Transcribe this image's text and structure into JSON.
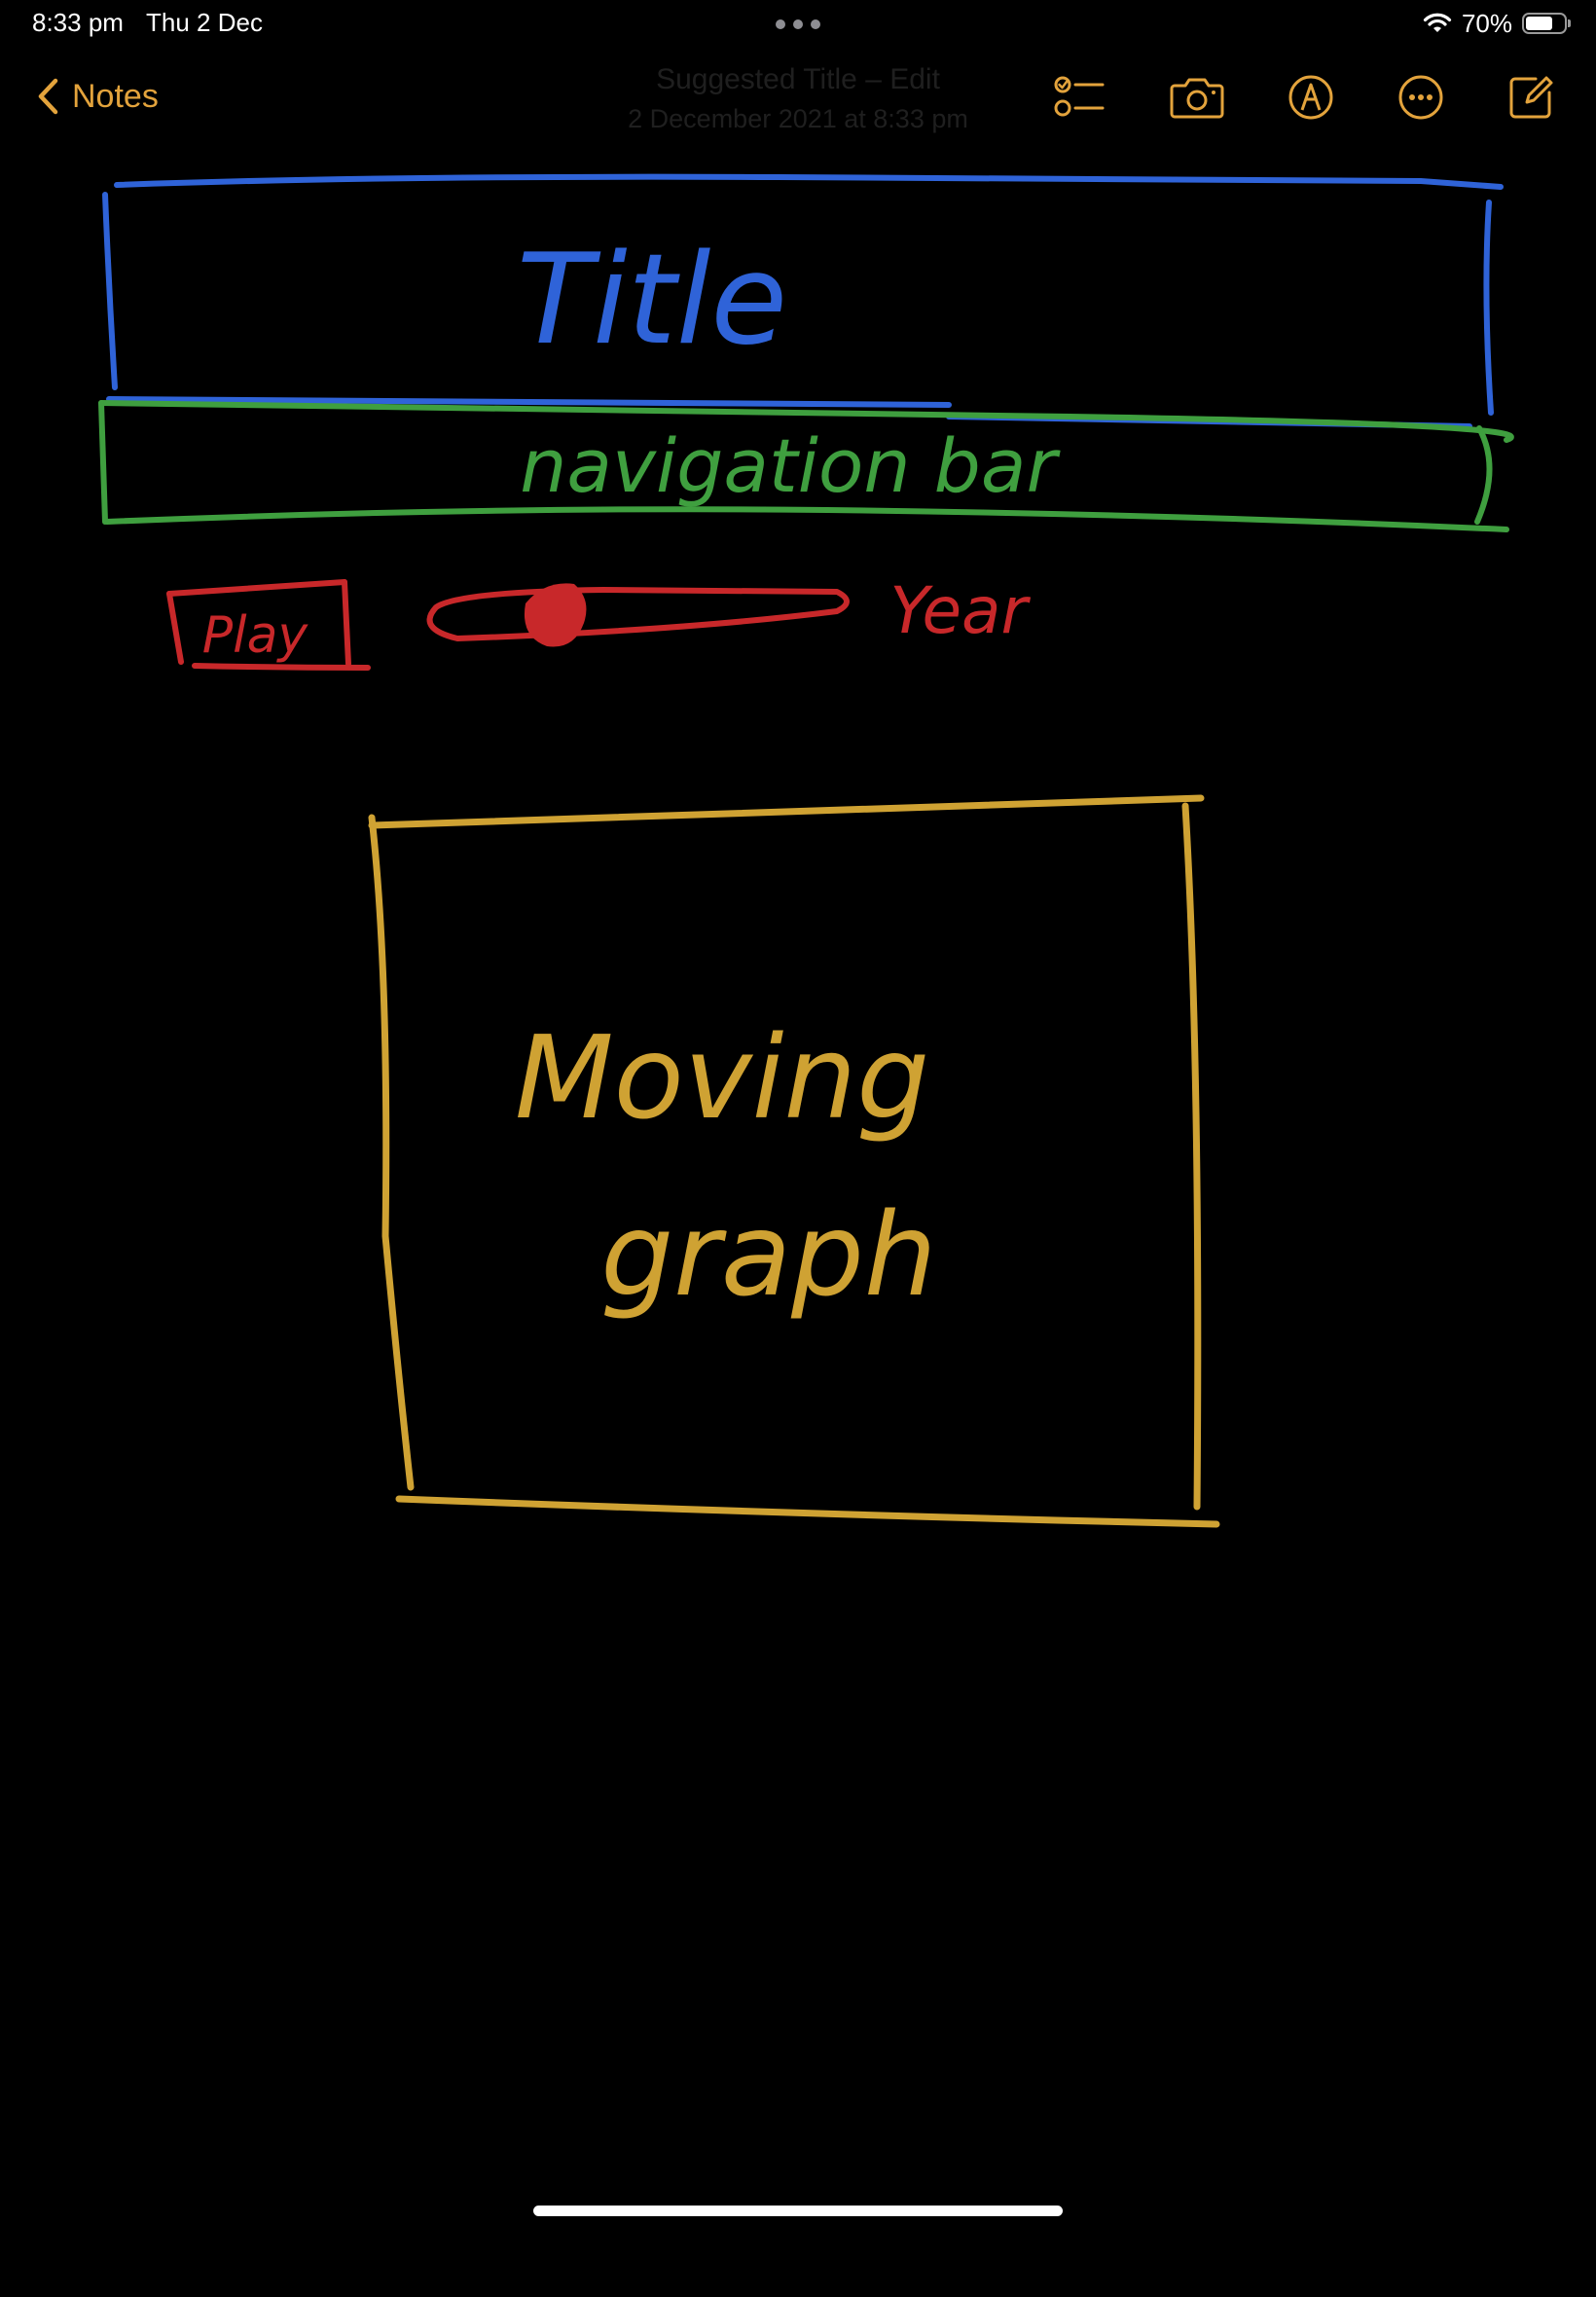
{
  "status_bar": {
    "time": "8:33 pm",
    "date": "Thu 2 Dec",
    "battery_percent_label": "70%",
    "battery_level": 0.7
  },
  "nav": {
    "back_label": "Notes",
    "note_title": "Suggested Title – Edit",
    "note_date": "2 December 2021 at 8:33 pm",
    "toolbar_icons": [
      "checklist-icon",
      "camera-icon",
      "markup-pen-icon",
      "more-icon",
      "compose-icon"
    ]
  },
  "sketch": {
    "title_label": "Title",
    "nav_bar_label": "navigation bar",
    "play_label": "Play",
    "year_label": "Year",
    "graph_label_line1": "Moving",
    "graph_label_line2": "graph",
    "colors": {
      "title": "#2f63d8",
      "nav_bar": "#3f9f3f",
      "controls": "#c8282a",
      "graph": "#cfa233",
      "accent": "#e3a33c"
    }
  }
}
